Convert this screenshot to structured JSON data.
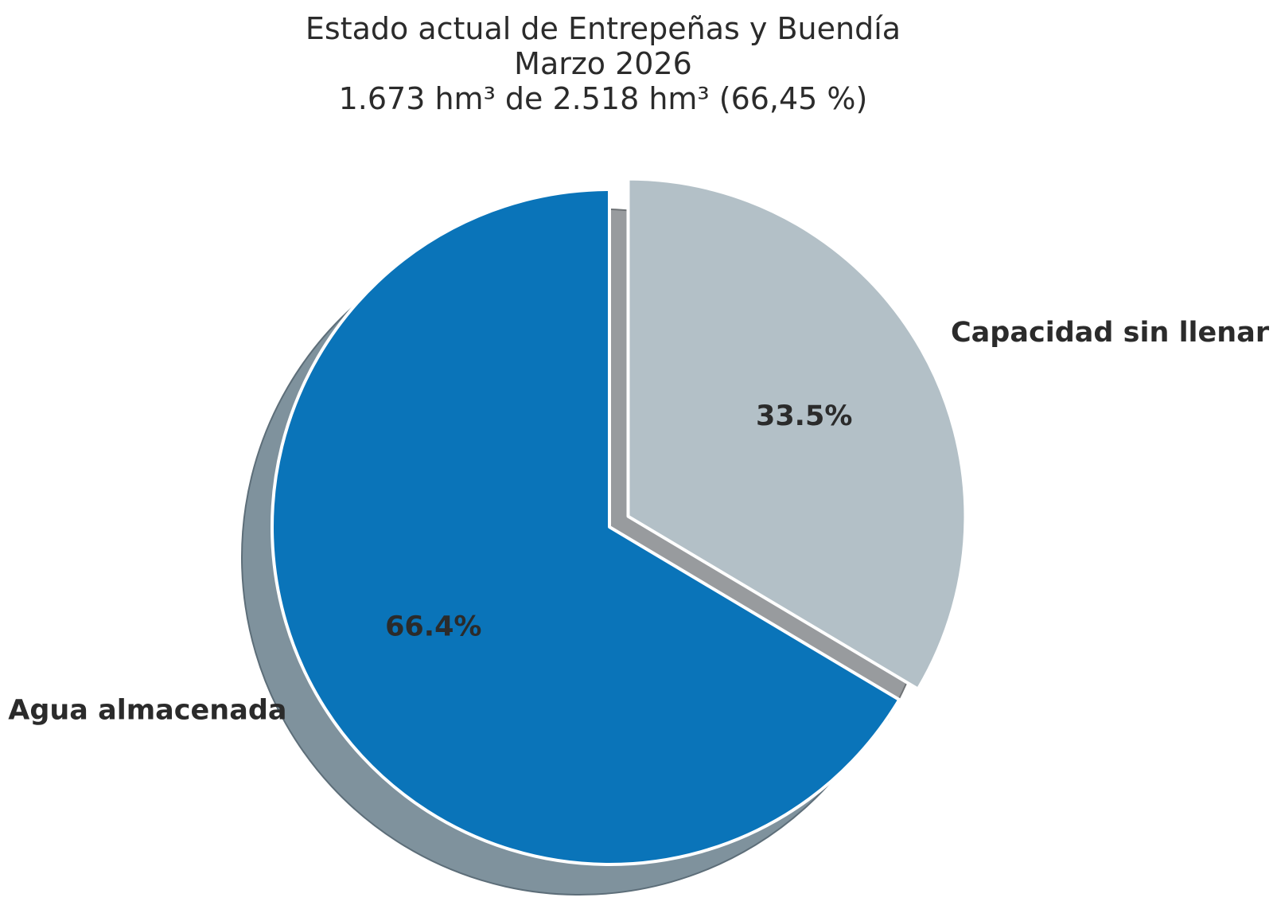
{
  "chart_data": {
    "type": "pie",
    "title_lines": [
      "Estado actual de Entrepeñas y Buendía",
      "Marzo 2026",
      "1.673 hm³ de 2.518 hm³ (66,45 %)"
    ],
    "slices": [
      {
        "label": "Agua almacenada",
        "value": 66.45,
        "pct_label": "66.4%",
        "color": "#0a74b9",
        "shadow_color": "#7f929d",
        "shadow_edge_color": "#5d6e79",
        "exploded": false
      },
      {
        "label": "Capacidad sin llenar",
        "value": 33.55,
        "pct_label": "33.5%",
        "color": "#b3c0c7",
        "shadow_color": "#989b9e",
        "shadow_edge_color": "#6f7376",
        "exploded": true
      }
    ],
    "start_angle": 90,
    "counterclock": true,
    "shadow": true,
    "legend": "none",
    "grid": "none",
    "text_color": "#2b2b2b",
    "wedge_edge_color": "#ffffff"
  }
}
